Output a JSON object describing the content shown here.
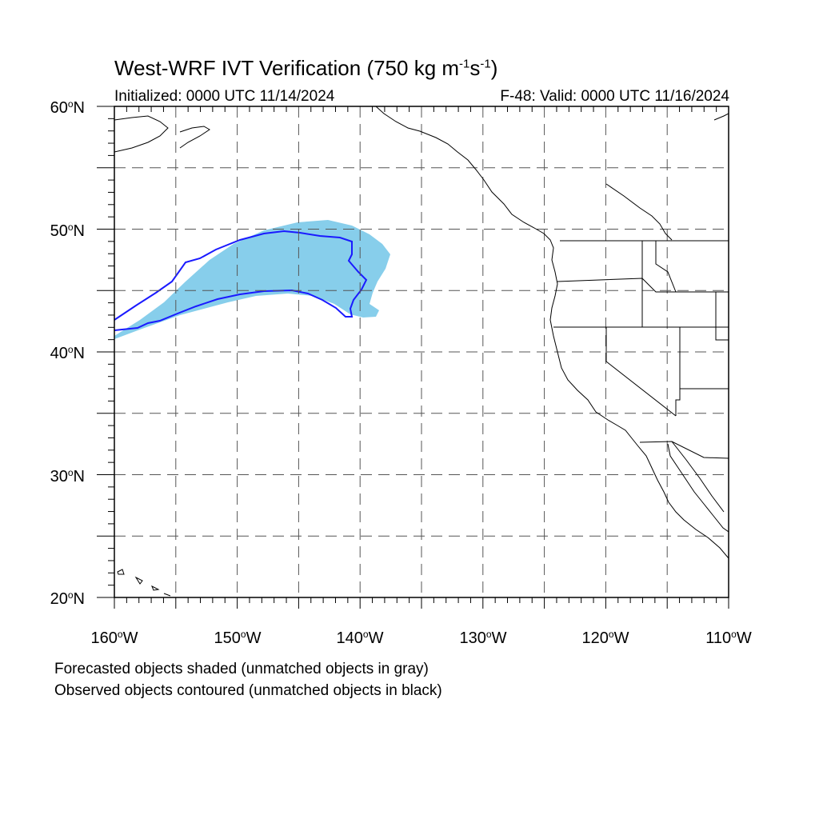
{
  "title": {
    "main": "West-WRF IVT Verification (750 kg m",
    "sup1": "-1",
    "mid": "s",
    "sup2": "-1",
    "end": ")"
  },
  "subtitle": {
    "initialized": "Initialized: 0000 UTC 11/14/2024",
    "valid": "F-48: Valid: 0000 UTC 11/16/2024"
  },
  "axes": {
    "lat_labels": [
      {
        "value": 60,
        "text": "60",
        "suffix": "N"
      },
      {
        "value": 50,
        "text": "50",
        "suffix": "N"
      },
      {
        "value": 40,
        "text": "40",
        "suffix": "N"
      },
      {
        "value": 30,
        "text": "30",
        "suffix": "N"
      },
      {
        "value": 20,
        "text": "20",
        "suffix": "N"
      }
    ],
    "lon_labels": [
      {
        "value": -160,
        "text": "160",
        "suffix": "W"
      },
      {
        "value": -150,
        "text": "150",
        "suffix": "W"
      },
      {
        "value": -140,
        "text": "140",
        "suffix": "W"
      },
      {
        "value": -130,
        "text": "130",
        "suffix": "W"
      },
      {
        "value": -120,
        "text": "120",
        "suffix": "W"
      },
      {
        "value": -110,
        "text": "110",
        "suffix": "W"
      }
    ],
    "lat_range": [
      20,
      60
    ],
    "lon_range": [
      -160,
      -110
    ],
    "grid_step_deg": 5
  },
  "colors": {
    "forecast_fill": "#87ceeb",
    "observed_contour": "#1a1aff",
    "coastline": "#000000",
    "grid": "#555555"
  },
  "notes": {
    "line1": "Forecasted objects shaded (unmatched objects in gray)",
    "line2": "Observed objects contoured (unmatched objects in black)"
  }
}
